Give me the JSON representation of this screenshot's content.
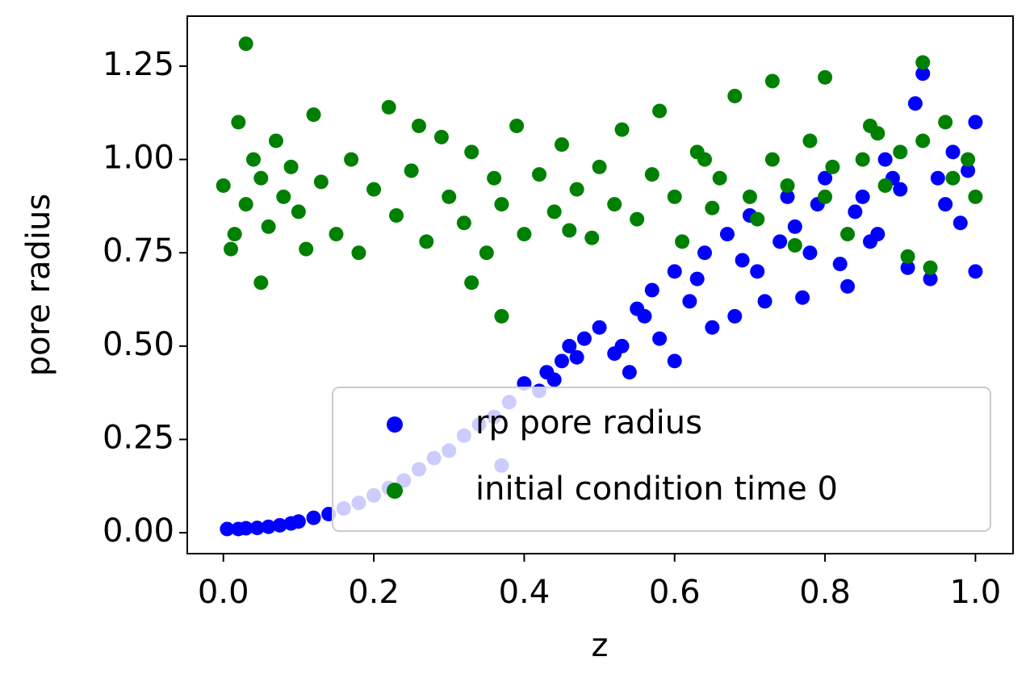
{
  "chart_data": {
    "type": "scatter",
    "xlabel": "z",
    "ylabel": "pore radius",
    "xlim": [
      -0.048,
      1.05
    ],
    "ylim": [
      -0.056,
      1.384
    ],
    "xticks": [
      {
        "value": 0,
        "label": "0.0"
      },
      {
        "value": 0.2,
        "label": "0.2"
      },
      {
        "value": 0.4,
        "label": "0.4"
      },
      {
        "value": 0.6,
        "label": "0.6"
      },
      {
        "value": 0.8,
        "label": "0.8"
      },
      {
        "value": 1,
        "label": "1.0"
      }
    ],
    "yticks": [
      {
        "value": 0,
        "label": "0.00"
      },
      0.25,
      {
        "value": 0.5,
        "label": "0.50"
      },
      0.75,
      {
        "value": 1,
        "label": "1.00"
      },
      1.25
    ],
    "legend": "lower right",
    "series": [
      {
        "name": "rp pore radius",
        "color": "#0000ff",
        "x": [
          0.005,
          0.02,
          0.03,
          0.045,
          0.06,
          0.075,
          0.09,
          0.1,
          0.12,
          0.14,
          0.16,
          0.18,
          0.2,
          0.22,
          0.24,
          0.26,
          0.28,
          0.3,
          0.32,
          0.34,
          0.36,
          0.37,
          0.38,
          0.4,
          0.42,
          0.43,
          0.45,
          0.46,
          0.48,
          0.5,
          0.52,
          0.54,
          0.55,
          0.57,
          0.58,
          0.6,
          0.6,
          0.62,
          0.64,
          0.65,
          0.67,
          0.68,
          0.7,
          0.72,
          0.74,
          0.75,
          0.77,
          0.79,
          0.8,
          0.82,
          0.83,
          0.85,
          0.87,
          0.88,
          0.9,
          0.91,
          0.92,
          0.93,
          0.94,
          0.95,
          0.97,
          0.98,
          1.0,
          1.0,
          0.99,
          0.44,
          0.47,
          0.53,
          0.56,
          0.63,
          0.69,
          0.71,
          0.76,
          0.78,
          0.84,
          0.86,
          0.89,
          0.96
        ],
        "values": [
          0.01,
          0.01,
          0.012,
          0.013,
          0.016,
          0.02,
          0.025,
          0.03,
          0.04,
          0.05,
          0.065,
          0.08,
          0.1,
          0.12,
          0.14,
          0.17,
          0.2,
          0.22,
          0.26,
          0.29,
          0.31,
          0.18,
          0.35,
          0.4,
          0.38,
          0.43,
          0.46,
          0.5,
          0.52,
          0.55,
          0.48,
          0.43,
          0.6,
          0.65,
          0.52,
          0.7,
          0.46,
          0.62,
          0.75,
          0.55,
          0.8,
          0.58,
          0.85,
          0.62,
          0.78,
          0.9,
          0.63,
          0.88,
          0.95,
          0.72,
          0.66,
          0.9,
          0.8,
          1.0,
          0.92,
          0.71,
          1.15,
          1.23,
          0.68,
          0.95,
          1.02,
          0.83,
          1.1,
          0.7,
          0.97,
          0.41,
          0.47,
          0.5,
          0.58,
          0.68,
          0.73,
          0.7,
          0.82,
          0.75,
          0.86,
          0.78,
          0.95,
          0.88
        ]
      },
      {
        "name": "initial condition time 0",
        "color": "#008000",
        "x": [
          0.0,
          0.01,
          0.02,
          0.03,
          0.04,
          0.05,
          0.06,
          0.07,
          0.08,
          0.09,
          0.1,
          0.12,
          0.13,
          0.15,
          0.17,
          0.18,
          0.2,
          0.22,
          0.23,
          0.25,
          0.27,
          0.29,
          0.3,
          0.32,
          0.33,
          0.35,
          0.36,
          0.37,
          0.39,
          0.4,
          0.42,
          0.44,
          0.45,
          0.47,
          0.49,
          0.5,
          0.52,
          0.53,
          0.55,
          0.57,
          0.58,
          0.6,
          0.61,
          0.63,
          0.65,
          0.66,
          0.68,
          0.7,
          0.71,
          0.73,
          0.75,
          0.76,
          0.78,
          0.8,
          0.81,
          0.83,
          0.85,
          0.86,
          0.88,
          0.9,
          0.91,
          0.93,
          0.94,
          0.96,
          0.97,
          0.99,
          1.0,
          0.03,
          0.05,
          0.33,
          0.37,
          0.8,
          0.93,
          0.73,
          0.015,
          0.11,
          0.26,
          0.46,
          0.64,
          0.87
        ],
        "values": [
          0.93,
          0.76,
          1.1,
          0.88,
          1.0,
          0.95,
          0.82,
          1.05,
          0.9,
          0.98,
          0.86,
          1.12,
          0.94,
          0.8,
          1.0,
          0.75,
          0.92,
          1.14,
          0.85,
          0.97,
          0.78,
          1.06,
          0.9,
          0.83,
          1.02,
          0.75,
          0.95,
          0.88,
          1.09,
          0.8,
          0.96,
          0.86,
          1.04,
          0.92,
          0.79,
          0.98,
          0.88,
          1.08,
          0.84,
          0.96,
          1.13,
          0.9,
          0.78,
          1.02,
          0.87,
          0.95,
          1.17,
          0.9,
          0.84,
          1.0,
          0.93,
          0.77,
          1.05,
          0.9,
          0.98,
          0.8,
          1.0,
          1.09,
          0.93,
          1.02,
          0.74,
          1.05,
          0.71,
          1.1,
          0.95,
          1.0,
          0.9,
          1.31,
          0.67,
          0.67,
          0.58,
          1.22,
          1.26,
          1.21,
          0.8,
          0.76,
          1.09,
          0.81,
          1.0,
          1.07
        ]
      }
    ]
  }
}
